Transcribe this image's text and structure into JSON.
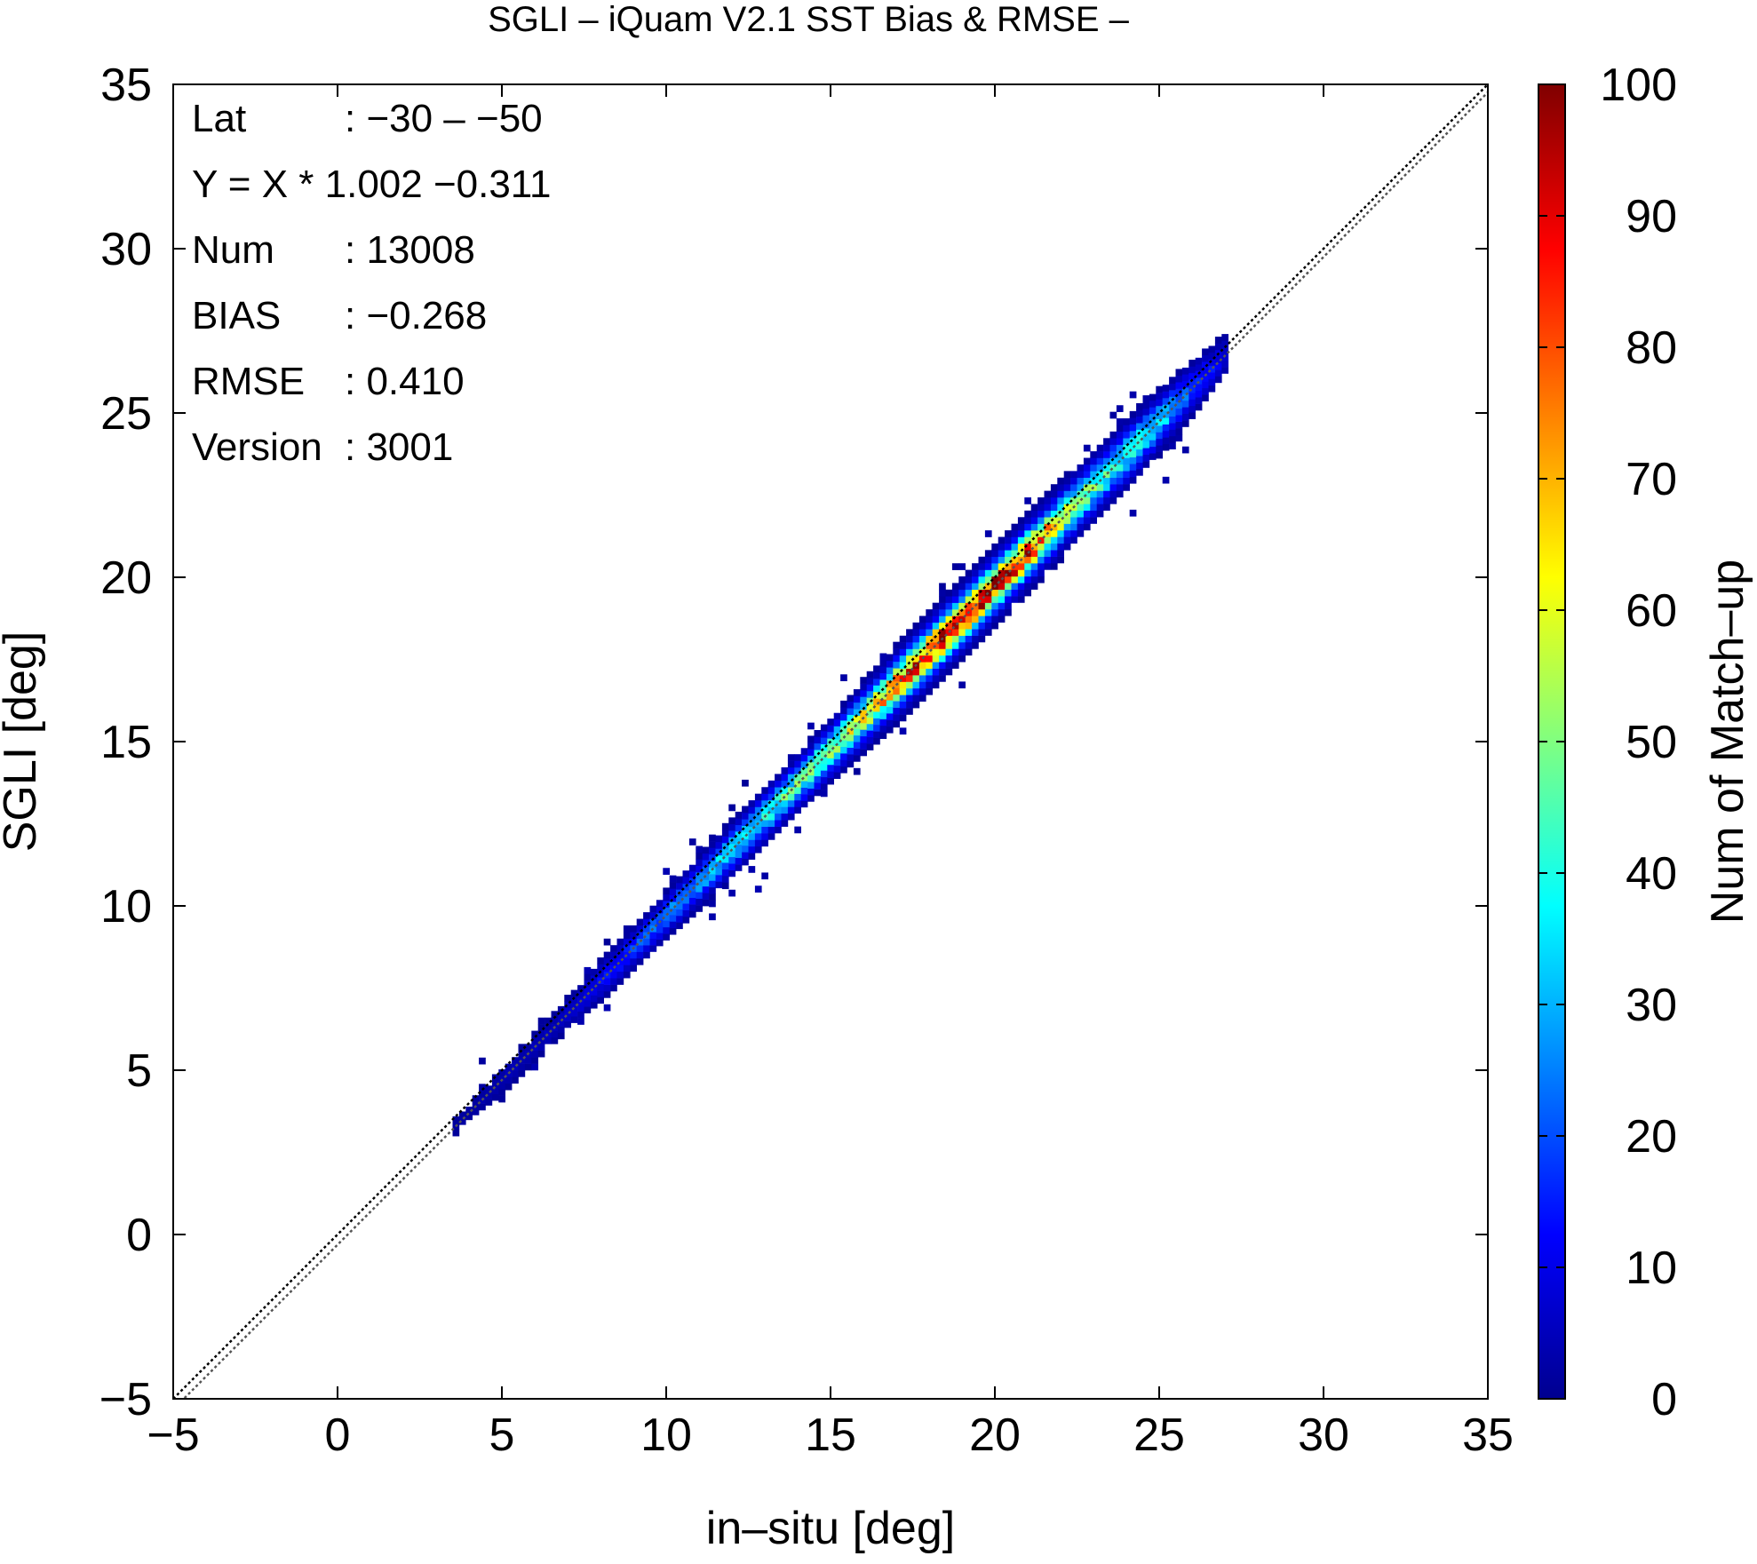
{
  "chart_data": {
    "type": "heatmap",
    "title": "SGLI – iQuam V2.1 SST Bias & RMSE  –",
    "xlabel": "in–situ [deg]",
    "ylabel": "SGLI [deg]",
    "xlim": [
      -5,
      35
    ],
    "ylim": [
      -5,
      35
    ],
    "x_ticks": [
      -5,
      0,
      5,
      10,
      15,
      20,
      25,
      30,
      35
    ],
    "y_ticks": [
      -5,
      0,
      5,
      10,
      15,
      20,
      25,
      30,
      35
    ],
    "x_tick_labels": [
      "−5",
      "0",
      "5",
      "10",
      "15",
      "20",
      "25",
      "30",
      "35"
    ],
    "y_tick_labels": [
      "−5",
      "0",
      "5",
      "10",
      "15",
      "20",
      "25",
      "30",
      "35"
    ],
    "bin_size": 0.2,
    "colorbar": {
      "label": "Num of Match–up",
      "min": 0,
      "max": 100,
      "ticks": [
        0,
        10,
        20,
        30,
        40,
        50,
        60,
        70,
        80,
        90,
        100
      ],
      "colormap": "jet",
      "colors": [
        "#00008f",
        "#0000ff",
        "#0080ff",
        "#00ffff",
        "#80ff80",
        "#ffff00",
        "#ff8000",
        "#ff0000",
        "#800000"
      ]
    },
    "stats": [
      {
        "label": "Lat",
        "value": ": −30 – −50"
      },
      {
        "label": "Y = X * 1.002 −0.311",
        "value": ""
      },
      {
        "label": "Num",
        "value": ": 13008"
      },
      {
        "label": "BIAS",
        "value": ": −0.268"
      },
      {
        "label": "RMSE",
        "value": ": 0.410"
      },
      {
        "label": "Version",
        "value": ": 3001"
      }
    ],
    "reference_lines": [
      {
        "name": "1:1 line",
        "slope": 1.0,
        "intercept": 0.0,
        "color": "#000000",
        "style": "dotted"
      },
      {
        "name": "regression",
        "slope": 1.002,
        "intercept": -0.311,
        "color": "#555555",
        "style": "dotted"
      }
    ],
    "density_profile": {
      "x": [
        3.5,
        5.0,
        6.5,
        8.0,
        9.5,
        11.0,
        12.5,
        14.0,
        15.5,
        17.0,
        18.0,
        19.0,
        20.0,
        21.0,
        22.0,
        23.0,
        24.0,
        25.0,
        26.0,
        27.0
      ],
      "peak_count": [
        2,
        4,
        5,
        12,
        22,
        30,
        38,
        45,
        55,
        75,
        90,
        92,
        90,
        82,
        60,
        45,
        40,
        35,
        18,
        8
      ],
      "y_spread": [
        0.3,
        0.4,
        0.4,
        0.5,
        0.5,
        0.55,
        0.6,
        0.6,
        0.65,
        0.7,
        0.7,
        0.7,
        0.7,
        0.7,
        0.7,
        0.7,
        0.7,
        0.65,
        0.6,
        0.5
      ]
    }
  }
}
